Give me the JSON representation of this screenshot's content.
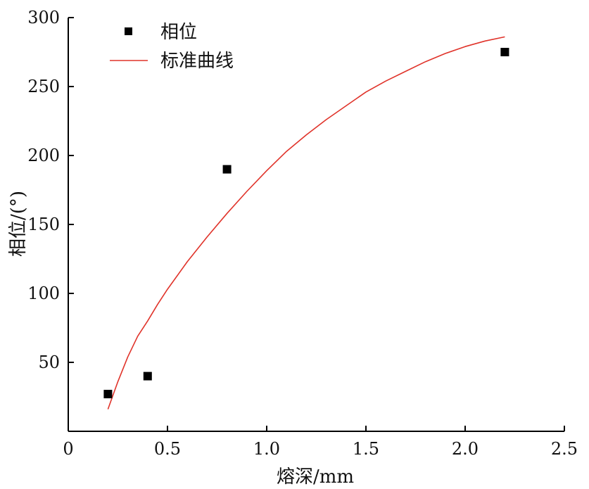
{
  "chart_data": {
    "type": "scatter",
    "xlabel": "熔深/mm",
    "ylabel": "相位/(°)",
    "xlim": [
      0,
      2.5
    ],
    "ylim": [
      0,
      300
    ],
    "x_ticks": [
      0,
      0.5,
      1.0,
      1.5,
      2.0,
      2.5
    ],
    "x_tick_labels": [
      "0",
      "0.5",
      "1.0",
      "1.5",
      "2.0",
      "2.5"
    ],
    "y_ticks": [
      50,
      100,
      150,
      200,
      250,
      300
    ],
    "y_tick_labels": [
      "50",
      "100",
      "150",
      "200",
      "250",
      "300"
    ],
    "grid": false,
    "legend_position": "top-left",
    "series": [
      {
        "name": "相位",
        "kind": "scatter",
        "marker": "square",
        "color": "#000000",
        "x": [
          0.2,
          0.4,
          0.8,
          2.2
        ],
        "y": [
          27,
          40,
          190,
          275
        ]
      },
      {
        "name": "标准曲线",
        "kind": "line",
        "color": "#e0332a",
        "x": [
          0.2,
          0.25,
          0.3,
          0.35,
          0.4,
          0.45,
          0.5,
          0.6,
          0.7,
          0.8,
          0.9,
          1.0,
          1.1,
          1.2,
          1.3,
          1.4,
          1.5,
          1.6,
          1.7,
          1.8,
          1.9,
          2.0,
          2.1,
          2.2
        ],
        "y": [
          16,
          36,
          54,
          69,
          80,
          92,
          103,
          123,
          141,
          158,
          174,
          189,
          203,
          215,
          226,
          236,
          246,
          254,
          261,
          268,
          274,
          279,
          283,
          286
        ]
      }
    ]
  }
}
